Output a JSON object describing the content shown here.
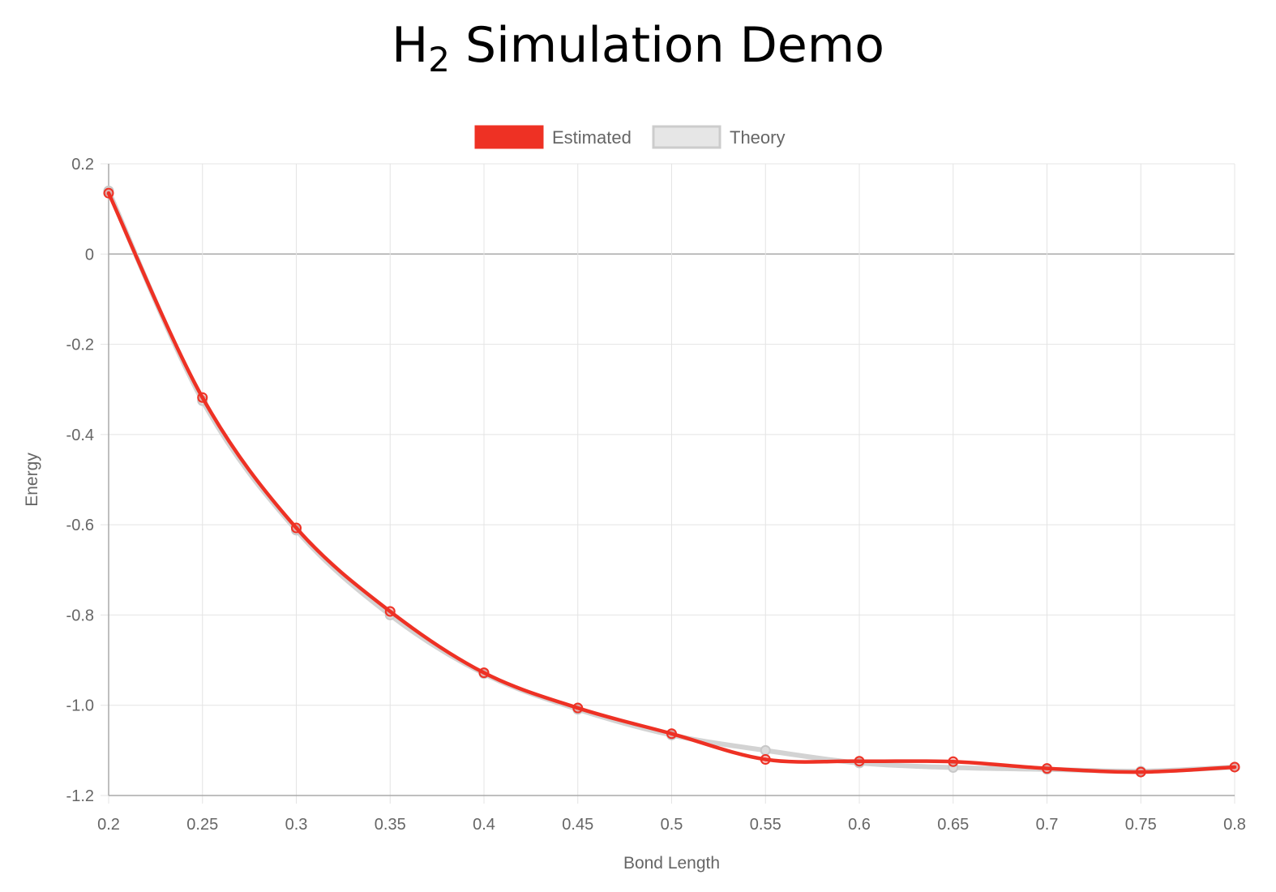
{
  "title": {
    "main": "H",
    "sub": "2",
    "rest": " Simulation Demo"
  },
  "chart_data": {
    "type": "line",
    "x": [
      0.2,
      0.25,
      0.3,
      0.35,
      0.4,
      0.45,
      0.5,
      0.55,
      0.6,
      0.65,
      0.7,
      0.75,
      0.8
    ],
    "x_tick_labels": [
      "0.2",
      "0.25",
      "0.3",
      "0.35",
      "0.4",
      "0.45",
      "0.5",
      "0.55",
      "0.6",
      "0.65",
      "0.7",
      "0.75",
      "0.8"
    ],
    "y_ticks": [
      0.2,
      0,
      -0.2,
      -0.4,
      -0.6,
      -0.8,
      -1.0,
      -1.2
    ],
    "y_tick_labels": [
      "0.2",
      "0",
      "-0.2",
      "-0.4",
      "-0.6",
      "-0.8",
      "-1.0",
      "-1.2"
    ],
    "xlim": [
      0.2,
      0.8
    ],
    "ylim": [
      -1.2,
      0.2
    ],
    "xlabel": "Bond Length",
    "ylabel": "Energy",
    "grid": true,
    "legend_position": "top-center",
    "series": [
      {
        "name": "Estimated",
        "color": "#ee3124",
        "values": [
          0.135,
          -0.318,
          -0.607,
          -0.792,
          -0.928,
          -1.006,
          -1.063,
          -1.12,
          -1.124,
          -1.125,
          -1.14,
          -1.148,
          -1.137
        ]
      },
      {
        "name": "Theory",
        "color": "#d3d3d3",
        "values": [
          0.14,
          -0.325,
          -0.612,
          -0.8,
          -0.93,
          -1.009,
          -1.066,
          -1.1,
          -1.128,
          -1.138,
          -1.142,
          -1.146,
          -1.137
        ]
      }
    ]
  }
}
